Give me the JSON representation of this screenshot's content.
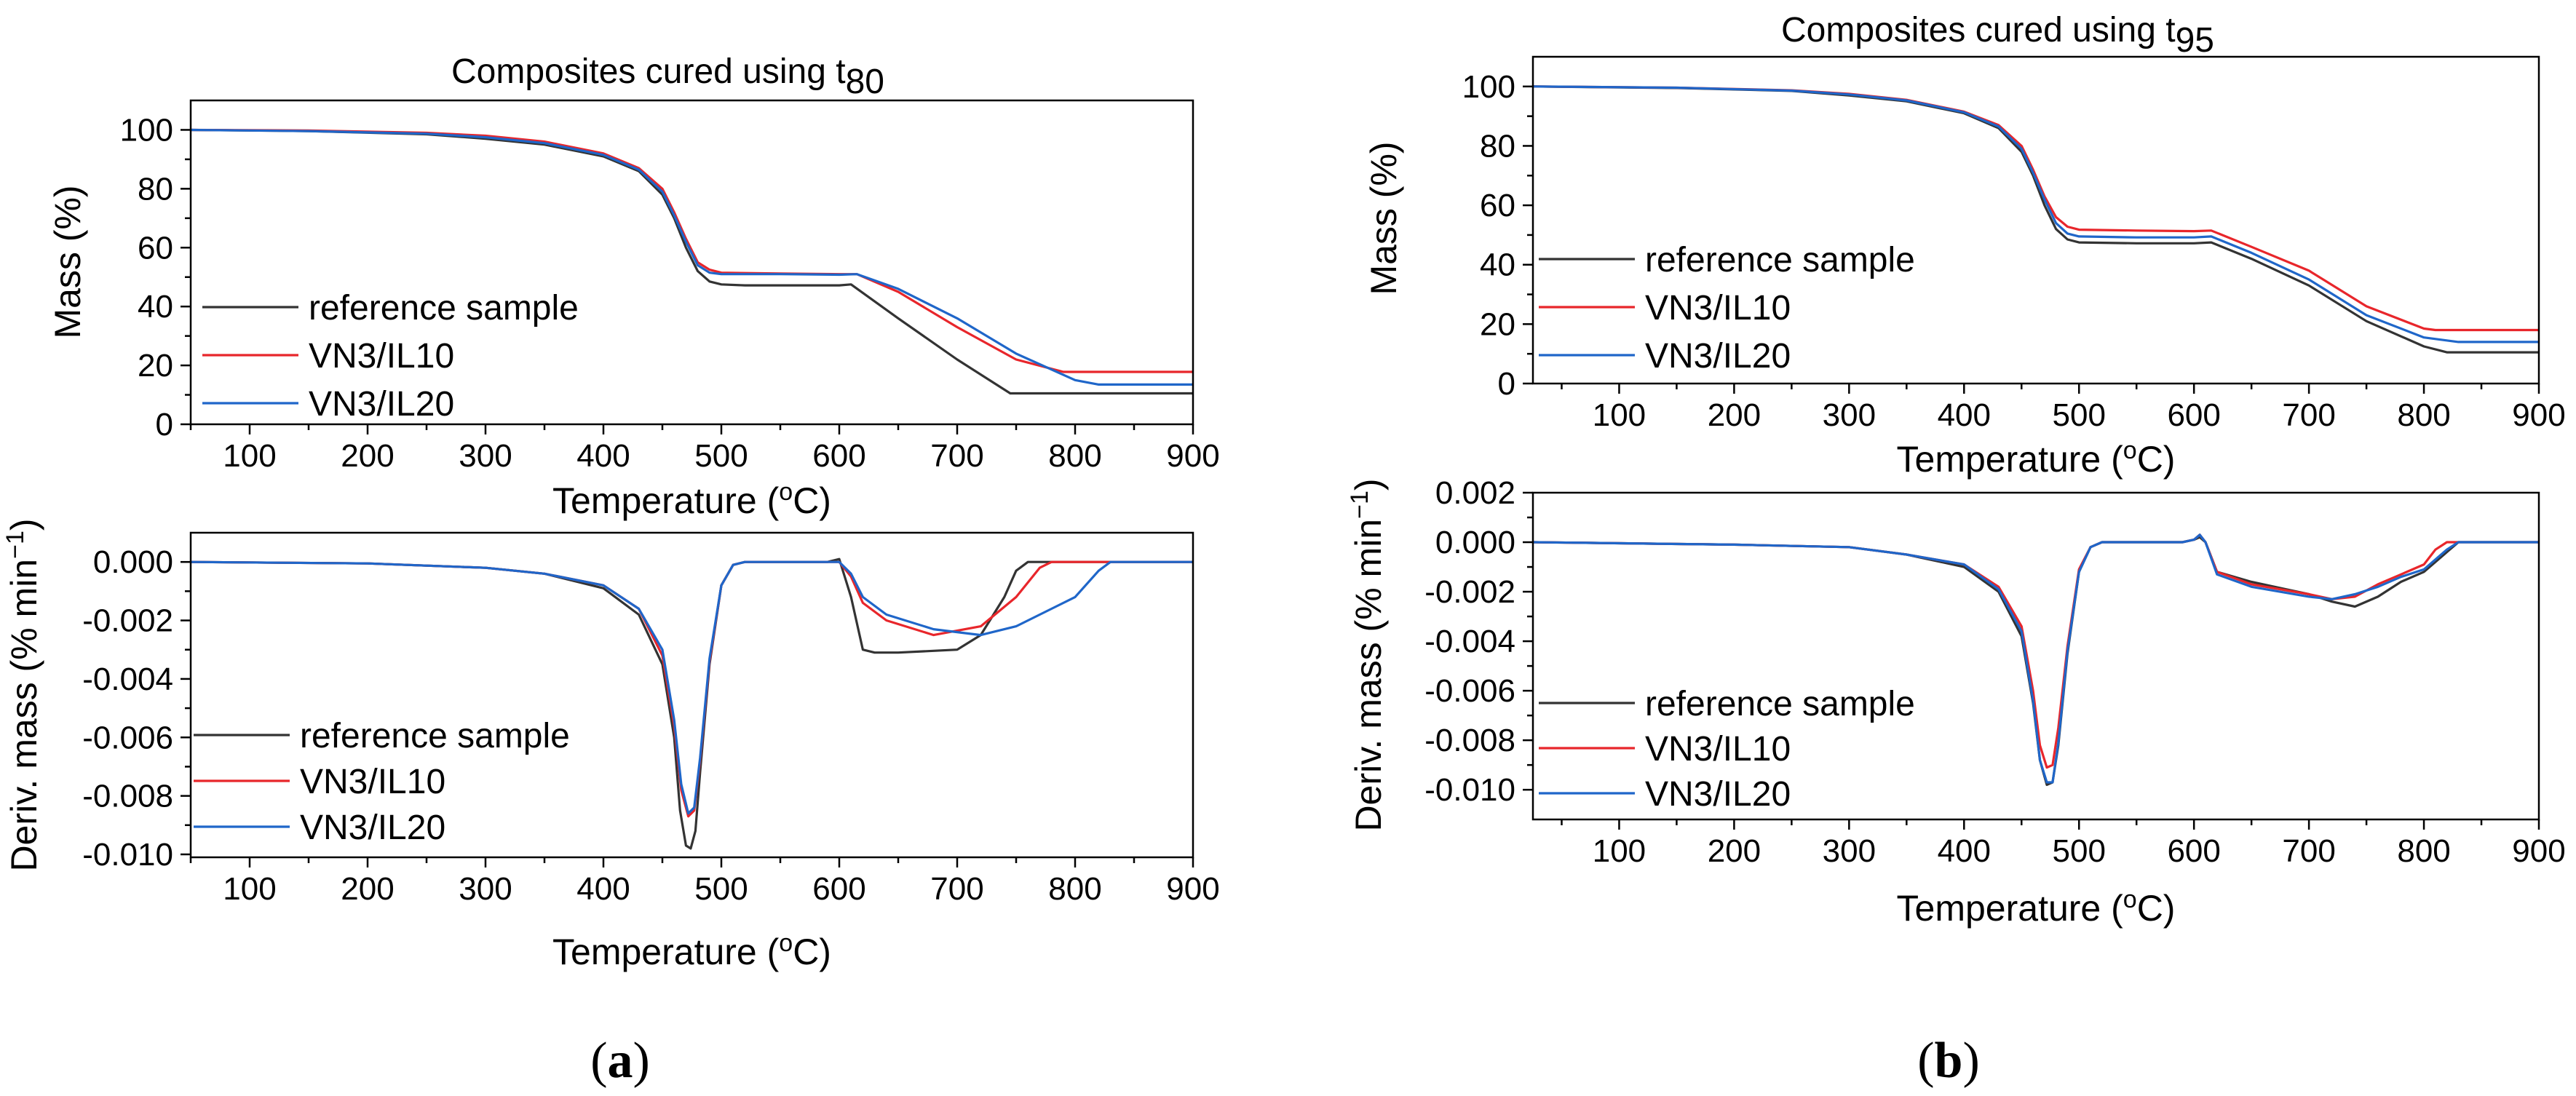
{
  "panels": [
    {
      "caption_open": "(",
      "caption_letter": "a",
      "caption_close": ")",
      "title_text": "Composites cured using t",
      "title_sub": "80"
    },
    {
      "caption_open": "(",
      "caption_letter": "b",
      "caption_close": ")",
      "title_text": "Composites cured using t",
      "title_sub": "95"
    }
  ],
  "chart_data": [
    {
      "id": "a-top",
      "type": "line",
      "title": "Composites cured using t80",
      "xlabel": "Temperature (oC)",
      "ylabel": "Mass (%)",
      "xlim": [
        50,
        900
      ],
      "ylim": [
        0,
        110
      ],
      "xticks": [
        100,
        200,
        300,
        400,
        500,
        600,
        700,
        800,
        900
      ],
      "yticks": [
        0,
        20,
        40,
        60,
        80,
        100
      ],
      "ytick_labels": [
        "0",
        "20",
        "40",
        "60",
        "80",
        "100"
      ],
      "legend": [
        "reference sample",
        "VN3/IL10",
        "VN3/IL20"
      ],
      "series": [
        {
          "name": "reference sample",
          "color": "#333333",
          "x": [
            50,
            150,
            250,
            300,
            350,
            400,
            430,
            450,
            460,
            470,
            480,
            490,
            500,
            520,
            550,
            600,
            610,
            650,
            700,
            745,
            800,
            900
          ],
          "y": [
            100,
            99.6,
            98.5,
            97,
            95,
            91,
            86,
            78,
            70,
            60,
            52,
            48.5,
            47.5,
            47.2,
            47.2,
            47.2,
            47.5,
            36,
            22,
            10.5,
            10.5,
            10.5
          ]
        },
        {
          "name": "VN3/IL10",
          "color": "#e8262b",
          "x": [
            50,
            150,
            250,
            300,
            350,
            400,
            430,
            450,
            460,
            470,
            480,
            490,
            500,
            550,
            600,
            615,
            650,
            700,
            750,
            790,
            900
          ],
          "y": [
            100,
            99.8,
            99,
            98,
            96,
            92,
            87,
            80,
            72,
            63,
            55,
            52.5,
            51.5,
            51.2,
            51,
            51,
            45,
            33,
            22,
            17.8,
            17.8
          ]
        },
        {
          "name": "VN3/IL20",
          "color": "#1f66c9",
          "x": [
            50,
            150,
            250,
            300,
            350,
            400,
            430,
            450,
            460,
            470,
            480,
            490,
            500,
            550,
            600,
            615,
            650,
            700,
            750,
            800,
            820,
            900
          ],
          "y": [
            100,
            99.6,
            98.7,
            97.5,
            95.5,
            91.5,
            86.5,
            79,
            71,
            62,
            54,
            51.5,
            51,
            51,
            50.8,
            51,
            46,
            36,
            24,
            15,
            13.5,
            13.5
          ]
        }
      ]
    },
    {
      "id": "a-bottom",
      "type": "line",
      "title": "",
      "xlabel": "Temperature (oC)",
      "ylabel": "Deriv. mass (% min-1)",
      "xlim": [
        50,
        900
      ],
      "ylim": [
        -0.0101,
        0.001
      ],
      "xticks": [
        100,
        200,
        300,
        400,
        500,
        600,
        700,
        800,
        900
      ],
      "yticks": [
        -0.01,
        -0.008,
        -0.006,
        -0.004,
        -0.002,
        0.0
      ],
      "ytick_labels": [
        "-0.010",
        "-0.008",
        "-0.006",
        "-0.004",
        "-0.002",
        "0.000"
      ],
      "legend": [
        "reference sample",
        "VN3/IL10",
        "VN3/IL20"
      ],
      "series": [
        {
          "name": "reference sample",
          "color": "#333333",
          "x": [
            50,
            200,
            300,
            350,
            400,
            430,
            450,
            460,
            465,
            470,
            474,
            478,
            482,
            490,
            500,
            510,
            520,
            590,
            600,
            610,
            620,
            630,
            650,
            700,
            720,
            740,
            750,
            760,
            900
          ],
          "y": [
            0,
            -5e-05,
            -0.0002,
            -0.0004,
            -0.0009,
            -0.0018,
            -0.0035,
            -0.006,
            -0.0085,
            -0.0097,
            -0.0098,
            -0.0092,
            -0.0072,
            -0.0035,
            -0.0008,
            -0.0001,
            0,
            0,
            0.0001,
            -0.0012,
            -0.003,
            -0.0031,
            -0.0031,
            -0.003,
            -0.0025,
            -0.0012,
            -0.0003,
            0,
            0
          ]
        },
        {
          "name": "VN3/IL10",
          "color": "#e8262b",
          "x": [
            50,
            200,
            300,
            350,
            400,
            430,
            450,
            460,
            466,
            472,
            477,
            482,
            490,
            500,
            510,
            520,
            600,
            610,
            620,
            640,
            680,
            720,
            750,
            770,
            780,
            900
          ],
          "y": [
            0,
            -5e-05,
            -0.0002,
            -0.0004,
            -0.0008,
            -0.0016,
            -0.0032,
            -0.0056,
            -0.0078,
            -0.0087,
            -0.0085,
            -0.0068,
            -0.0034,
            -0.0008,
            -0.0001,
            0,
            0,
            -0.0005,
            -0.0014,
            -0.002,
            -0.0025,
            -0.0022,
            -0.0012,
            -0.0002,
            0,
            0
          ]
        },
        {
          "name": "VN3/IL20",
          "color": "#1f66c9",
          "x": [
            50,
            200,
            300,
            350,
            400,
            430,
            450,
            460,
            466,
            472,
            477,
            482,
            490,
            500,
            510,
            520,
            600,
            610,
            620,
            640,
            680,
            720,
            750,
            780,
            800,
            820,
            830,
            900
          ],
          "y": [
            0,
            -5e-05,
            -0.0002,
            -0.0004,
            -0.0008,
            -0.0016,
            -0.003,
            -0.0054,
            -0.0076,
            -0.0086,
            -0.0084,
            -0.0067,
            -0.0033,
            -0.0008,
            -0.0001,
            0,
            0,
            -0.0004,
            -0.0012,
            -0.0018,
            -0.0023,
            -0.0025,
            -0.0022,
            -0.0016,
            -0.0012,
            -0.0003,
            0,
            0
          ]
        }
      ]
    },
    {
      "id": "b-top",
      "type": "line",
      "title": "Composites cured using t95",
      "xlabel": "Temperature (oC)",
      "ylabel": "Mass (%)",
      "xlim": [
        25,
        900
      ],
      "ylim": [
        0,
        110
      ],
      "xticks": [
        100,
        200,
        300,
        400,
        500,
        600,
        700,
        800,
        900
      ],
      "yticks": [
        0,
        20,
        40,
        60,
        80,
        100
      ],
      "ytick_labels": [
        "0",
        "20",
        "40",
        "60",
        "80",
        "100"
      ],
      "legend": [
        "reference sample",
        "VN3/IL10",
        "VN3/IL20"
      ],
      "series": [
        {
          "name": "reference sample",
          "color": "#333333",
          "x": [
            25,
            150,
            250,
            300,
            350,
            400,
            430,
            450,
            460,
            470,
            480,
            490,
            500,
            550,
            600,
            615,
            650,
            700,
            750,
            800,
            820,
            900
          ],
          "y": [
            100,
            99.5,
            98.5,
            97,
            95,
            91,
            86,
            78,
            70,
            60,
            52,
            48.5,
            47.5,
            47.2,
            47.2,
            47.5,
            42,
            33,
            21,
            12.5,
            10.5,
            10.5
          ]
        },
        {
          "name": "VN3/IL10",
          "color": "#e8262b",
          "x": [
            25,
            150,
            250,
            300,
            350,
            400,
            430,
            450,
            460,
            470,
            480,
            490,
            500,
            550,
            600,
            615,
            650,
            700,
            750,
            800,
            810,
            900
          ],
          "y": [
            100,
            99.6,
            98.7,
            97.5,
            95.5,
            91.5,
            87,
            80,
            72,
            63,
            56,
            52.8,
            51.8,
            51.5,
            51.3,
            51.5,
            46,
            38,
            26,
            18.5,
            18,
            18
          ]
        },
        {
          "name": "VN3/IL20",
          "color": "#1f66c9",
          "x": [
            25,
            150,
            250,
            300,
            350,
            400,
            430,
            450,
            460,
            470,
            480,
            490,
            500,
            550,
            600,
            615,
            650,
            700,
            750,
            800,
            830,
            900
          ],
          "y": [
            100,
            99.6,
            98.6,
            97.3,
            95.3,
            91.3,
            86.5,
            79,
            71,
            62,
            54,
            50.5,
            49.5,
            49.2,
            49.2,
            49.5,
            44,
            35,
            23,
            15.5,
            14,
            14
          ]
        }
      ]
    },
    {
      "id": "b-bottom",
      "type": "line",
      "title": "",
      "xlabel": "Temperature (oC)",
      "ylabel": "Deriv. mass (% min-1)",
      "xlim": [
        25,
        900
      ],
      "ylim": [
        -0.0112,
        0.002
      ],
      "xticks": [
        100,
        200,
        300,
        400,
        500,
        600,
        700,
        800,
        900
      ],
      "yticks": [
        -0.01,
        -0.008,
        -0.006,
        -0.004,
        -0.002,
        0.0,
        0.002
      ],
      "ytick_labels": [
        "-0.010",
        "-0.008",
        "-0.006",
        "-0.004",
        "-0.002",
        "0.000",
        "0.002"
      ],
      "legend": [
        "reference sample",
        "VN3/IL10",
        "VN3/IL20"
      ],
      "series": [
        {
          "name": "reference sample",
          "color": "#333333",
          "x": [
            25,
            200,
            300,
            350,
            400,
            430,
            450,
            460,
            466,
            472,
            477,
            482,
            490,
            500,
            510,
            520,
            590,
            600,
            605,
            610,
            620,
            650,
            680,
            700,
            720,
            740,
            760,
            780,
            800,
            820,
            830,
            900
          ],
          "y": [
            0,
            -0.0001,
            -0.0002,
            -0.0005,
            -0.001,
            -0.002,
            -0.0038,
            -0.0065,
            -0.0088,
            -0.0098,
            -0.0097,
            -0.0082,
            -0.0045,
            -0.0012,
            -0.0002,
            0,
            0,
            0.0001,
            0.0002,
            0,
            -0.0012,
            -0.0016,
            -0.0019,
            -0.0021,
            -0.0024,
            -0.0026,
            -0.0022,
            -0.0016,
            -0.0012,
            -0.0004,
            0,
            0
          ]
        },
        {
          "name": "VN3/IL10",
          "color": "#e8262b",
          "x": [
            25,
            200,
            300,
            350,
            400,
            430,
            450,
            460,
            466,
            472,
            477,
            482,
            490,
            500,
            510,
            520,
            590,
            600,
            605,
            610,
            620,
            650,
            700,
            720,
            740,
            760,
            780,
            800,
            810,
            820,
            900
          ],
          "y": [
            0,
            -0.0001,
            -0.0002,
            -0.0005,
            -0.0009,
            -0.0018,
            -0.0034,
            -0.006,
            -0.0082,
            -0.0091,
            -0.009,
            -0.0075,
            -0.0042,
            -0.0011,
            -0.0002,
            0,
            0,
            0.0001,
            0.0003,
            0,
            -0.0012,
            -0.0017,
            -0.0021,
            -0.0023,
            -0.0022,
            -0.0017,
            -0.0013,
            -0.0009,
            -0.0003,
            0,
            0
          ]
        },
        {
          "name": "VN3/IL20",
          "color": "#1f66c9",
          "x": [
            25,
            200,
            300,
            350,
            400,
            430,
            450,
            460,
            466,
            472,
            477,
            482,
            490,
            500,
            510,
            520,
            590,
            600,
            605,
            610,
            620,
            650,
            700,
            720,
            740,
            760,
            780,
            800,
            820,
            830,
            900
          ],
          "y": [
            0,
            -0.0001,
            -0.0002,
            -0.0005,
            -0.0009,
            -0.0019,
            -0.0036,
            -0.0064,
            -0.0088,
            -0.0097,
            -0.0097,
            -0.0081,
            -0.0044,
            -0.0012,
            -0.0002,
            0,
            0,
            0.0001,
            0.0003,
            0,
            -0.0013,
            -0.0018,
            -0.0022,
            -0.0023,
            -0.0021,
            -0.0018,
            -0.0014,
            -0.0011,
            -0.0003,
            0,
            0
          ]
        }
      ]
    }
  ]
}
